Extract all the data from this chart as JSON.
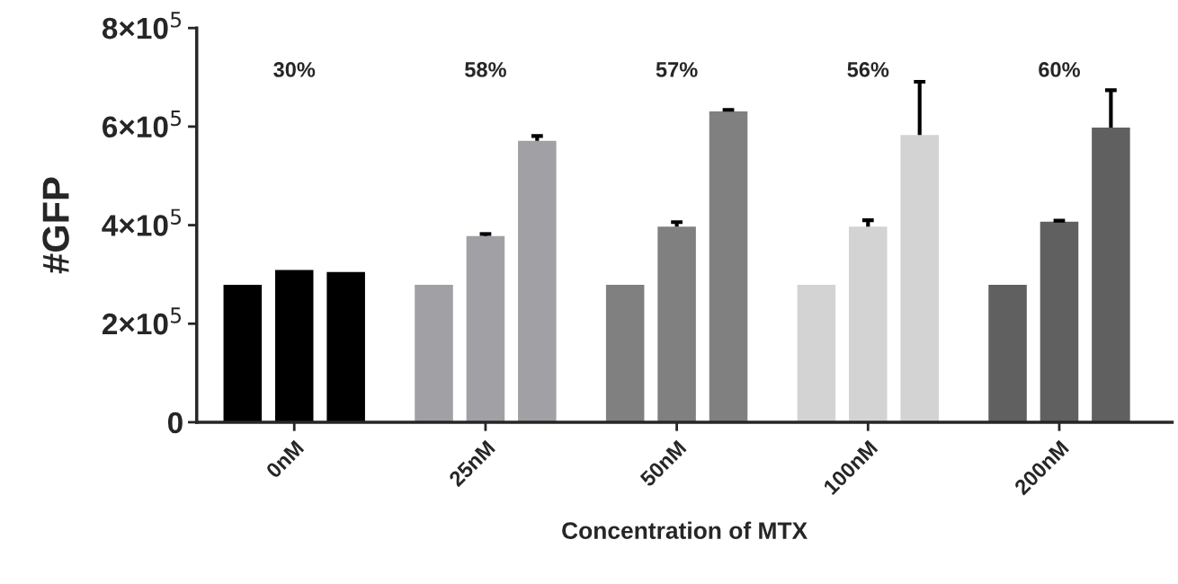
{
  "chart_data": {
    "type": "bar",
    "xlabel": "Concentration of MTX",
    "ylabel": "#GFP",
    "categories": [
      "0nM",
      "25nM",
      "50nM",
      "100nM",
      "200nM"
    ],
    "series": [
      {
        "colors": [
          "#000000",
          "#a0a0a5",
          "#808080",
          "#d3d3d3",
          "#606060"
        ],
        "values": [
          279000,
          279000,
          279000,
          279000,
          279000
        ]
      },
      {
        "colors": [
          "#000000",
          "#a0a0a5",
          "#808080",
          "#d3d3d3",
          "#606060"
        ],
        "values": [
          309000,
          378000,
          397000,
          397000,
          407000
        ],
        "errors": [
          null,
          [
            378000,
            382000
          ],
          [
            397000,
            406000
          ],
          [
            397000,
            410000
          ],
          [
            407000,
            409000
          ]
        ]
      },
      {
        "colors": [
          "#000000",
          "#a0a0a5",
          "#808080",
          "#d3d3d3",
          "#606060"
        ],
        "values": [
          305000,
          571000,
          631000,
          583000,
          598000
        ],
        "errors": [
          null,
          [
            571000,
            581000
          ],
          [
            631000,
            634000
          ],
          [
            583000,
            691000
          ],
          [
            598000,
            674000
          ]
        ]
      }
    ],
    "ylim": [
      0,
      800000
    ],
    "yticks": [
      0,
      {
        "value": 200000,
        "label": "2×10$^{5}$"
      },
      {
        "value": 400000,
        "label": "4×10$^{5}$"
      },
      {
        "value": 600000,
        "label": "6×10$^{5}$"
      },
      {
        "value": 800000,
        "label": "8×10$^{5}$"
      }
    ],
    "annotations": [
      "30%",
      "58%",
      "57%",
      "56%",
      "60%"
    ],
    "grid": false
  }
}
